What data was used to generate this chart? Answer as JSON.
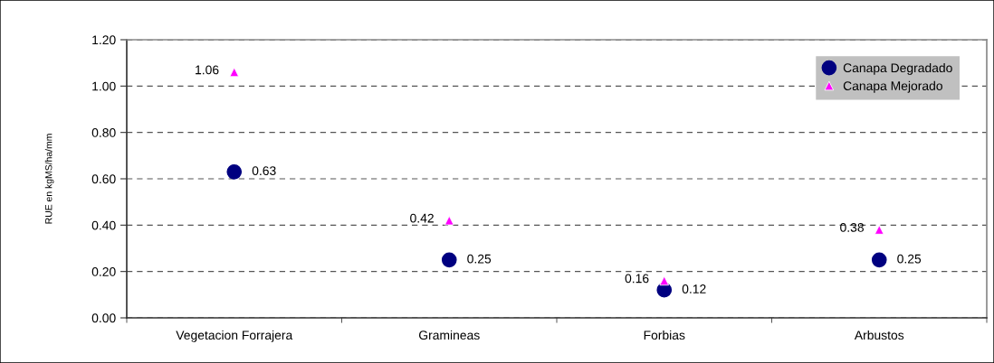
{
  "chart_data": {
    "type": "scatter",
    "ylabel": "RUE en kgMS/ha/mm",
    "categories": [
      "Vegetacion Forrajera",
      "Gramineas",
      "Forbias",
      "Arbustos"
    ],
    "series": [
      {
        "name": "Canapa Degradado",
        "color": "#000080",
        "marker": "circle",
        "values": [
          0.63,
          0.25,
          0.12,
          0.25
        ]
      },
      {
        "name": "Canapa Mejorado",
        "color": "#ff00ff",
        "marker": "triangle",
        "values": [
          1.06,
          0.42,
          0.16,
          0.38
        ]
      }
    ],
    "ylim": [
      0,
      1.2
    ],
    "yticks": [
      {
        "value": 0,
        "label": "0.00"
      },
      {
        "value": 0.2,
        "label": "0.20"
      },
      {
        "value": 0.4,
        "label": "0.40"
      },
      {
        "value": 0.6,
        "label": "0.60"
      },
      {
        "value": 0.8,
        "label": "0.80"
      },
      {
        "value": 1.0,
        "label": "1.00"
      },
      {
        "value": 1.2,
        "label": "1.20"
      }
    ],
    "grid": "y",
    "legend": "top right",
    "data_labels": true
  }
}
